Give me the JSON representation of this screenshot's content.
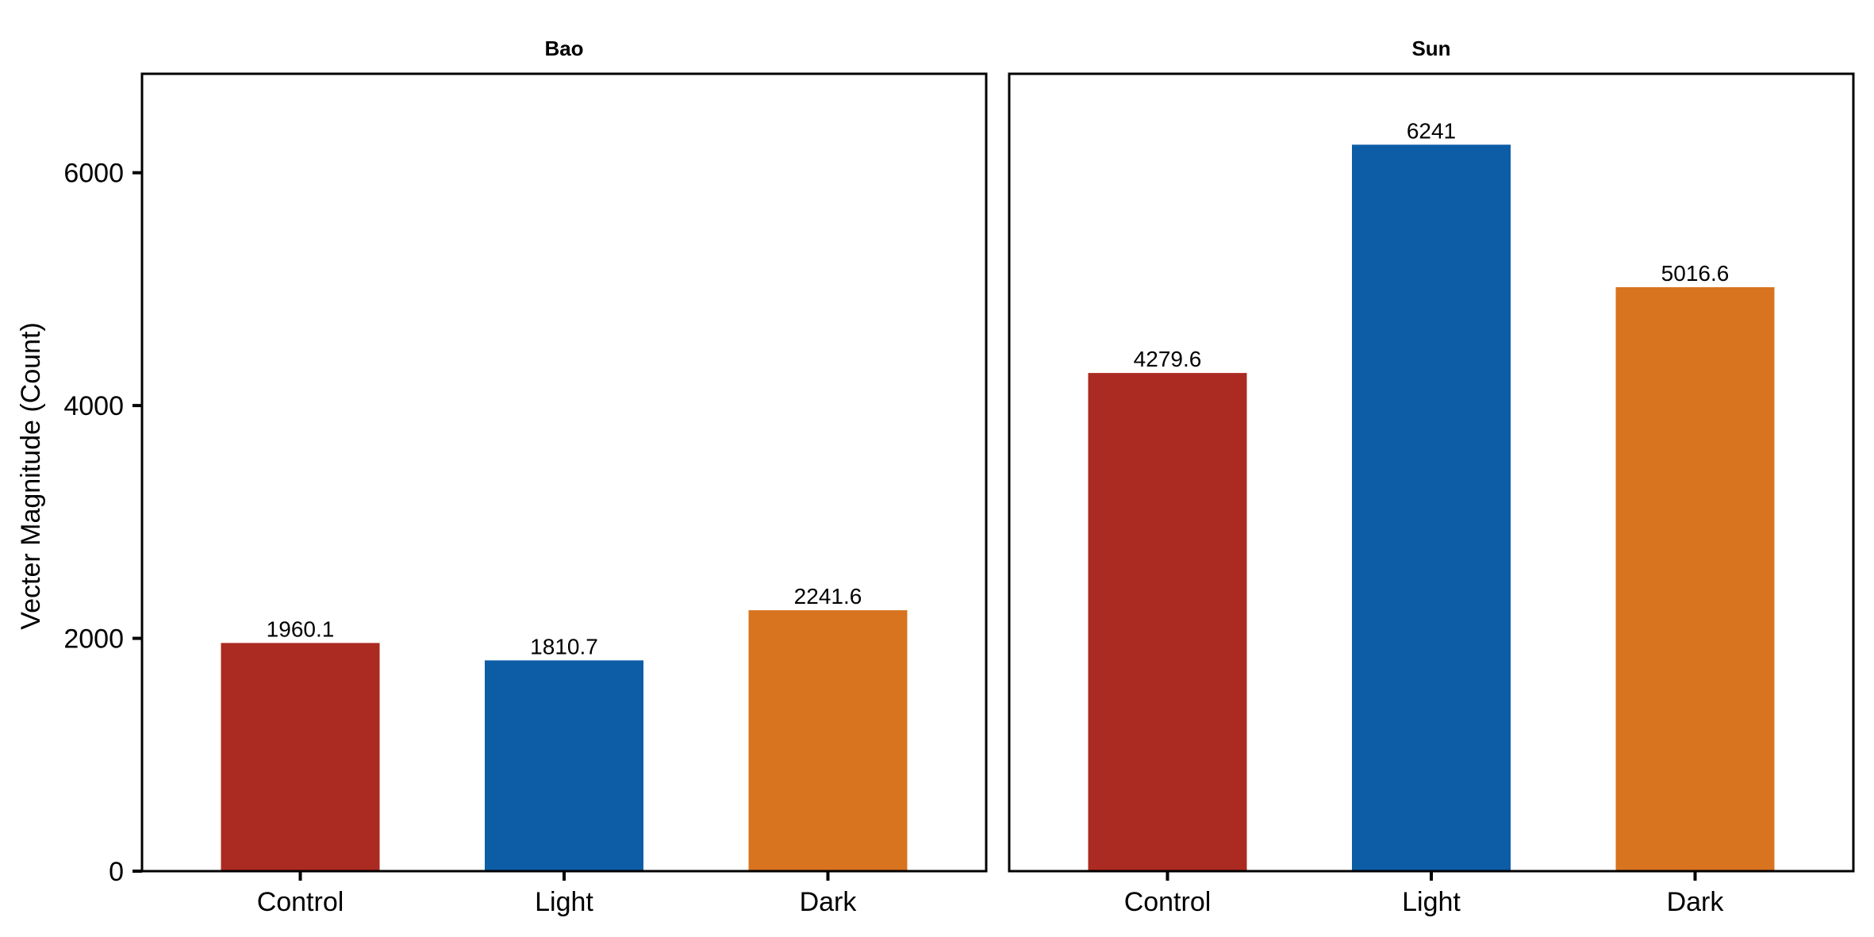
{
  "chart_data": {
    "type": "bar",
    "ylabel": "Vecter Magnitude (Count)",
    "xlabel": "",
    "ylim": [
      0,
      6850
    ],
    "yticks": [
      0,
      2000,
      4000,
      6000
    ],
    "categories": [
      "Control",
      "Light",
      "Dark"
    ],
    "colors": {
      "Control": "#AB2A21",
      "Light": "#0D5DA6",
      "Dark": "#D8741F"
    },
    "grid": false,
    "legend": "none",
    "panels": [
      {
        "title": "Bao",
        "values": [
          1960.1,
          1810.7,
          2241.6
        ],
        "labels": [
          "1960.1",
          "1810.7",
          "2241.6"
        ]
      },
      {
        "title": "Sun",
        "values": [
          4279.6,
          6241,
          5016.6
        ],
        "labels": [
          "4279.6",
          "6241",
          "5016.6"
        ]
      }
    ]
  }
}
